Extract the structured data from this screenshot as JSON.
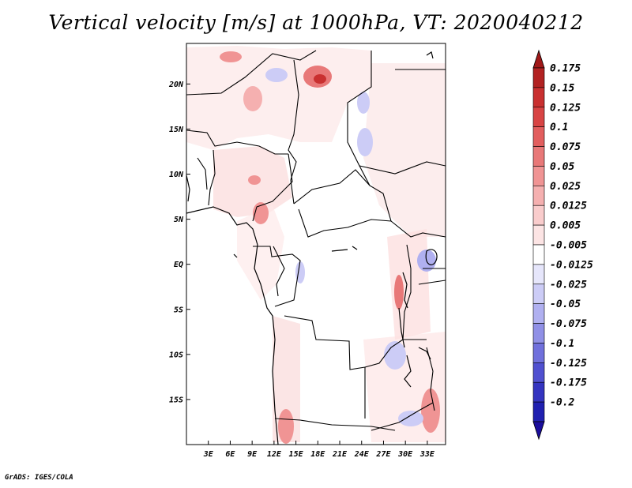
{
  "title": "Vertical velocity [m/s] at 1000hPa, VT: 2020040212",
  "credit": "GrADS: IGES/COLA",
  "map": {
    "lon_range": [
      0,
      35.5
    ],
    "lat_range": [
      -20,
      24.5
    ],
    "lat_ticks": [
      {
        "lat": 20,
        "label": "20N"
      },
      {
        "lat": 15,
        "label": "15N"
      },
      {
        "lat": 10,
        "label": "10N"
      },
      {
        "lat": 5,
        "label": "5N"
      },
      {
        "lat": 0,
        "label": "EQ"
      },
      {
        "lat": -5,
        "label": "5S"
      },
      {
        "lat": -10,
        "label": "10S"
      },
      {
        "lat": -15,
        "label": "15S"
      }
    ],
    "lon_ticks": [
      {
        "lon": 3,
        "label": "3E"
      },
      {
        "lon": 6,
        "label": "6E"
      },
      {
        "lon": 9,
        "label": "9E"
      },
      {
        "lon": 12,
        "label": "12E"
      },
      {
        "lon": 15,
        "label": "15E"
      },
      {
        "lon": 18,
        "label": "18E"
      },
      {
        "lon": 21,
        "label": "21E"
      },
      {
        "lon": 24,
        "label": "24E"
      },
      {
        "lon": 27,
        "label": "27E"
      },
      {
        "lon": 30,
        "label": "30E"
      },
      {
        "lon": 33,
        "label": "33E"
      }
    ]
  },
  "colorbar": {
    "labels": [
      "0.175",
      "0.15",
      "0.125",
      "0.1",
      "0.075",
      "0.05",
      "0.025",
      "0.0125",
      "0.005",
      "-0.005",
      "-0.0125",
      "-0.025",
      "-0.05",
      "-0.075",
      "-0.1",
      "-0.125",
      "-0.175",
      "-0.2"
    ],
    "colors": {
      "top_arrow": "#a01818",
      "bottom_arrow": "#1a0d9c",
      "bands": [
        "#b22222",
        "#c93030",
        "#d84444",
        "#e25e5e",
        "#e87878",
        "#f09494",
        "#f5b0b0",
        "#f9cccc",
        "#fce4e4",
        "#ffffff",
        "#e6e6fb",
        "#ccccf6",
        "#b0b0f0",
        "#9090e6",
        "#7070dc",
        "#5050d0",
        "#3434c0",
        "#2020b0"
      ]
    }
  }
}
